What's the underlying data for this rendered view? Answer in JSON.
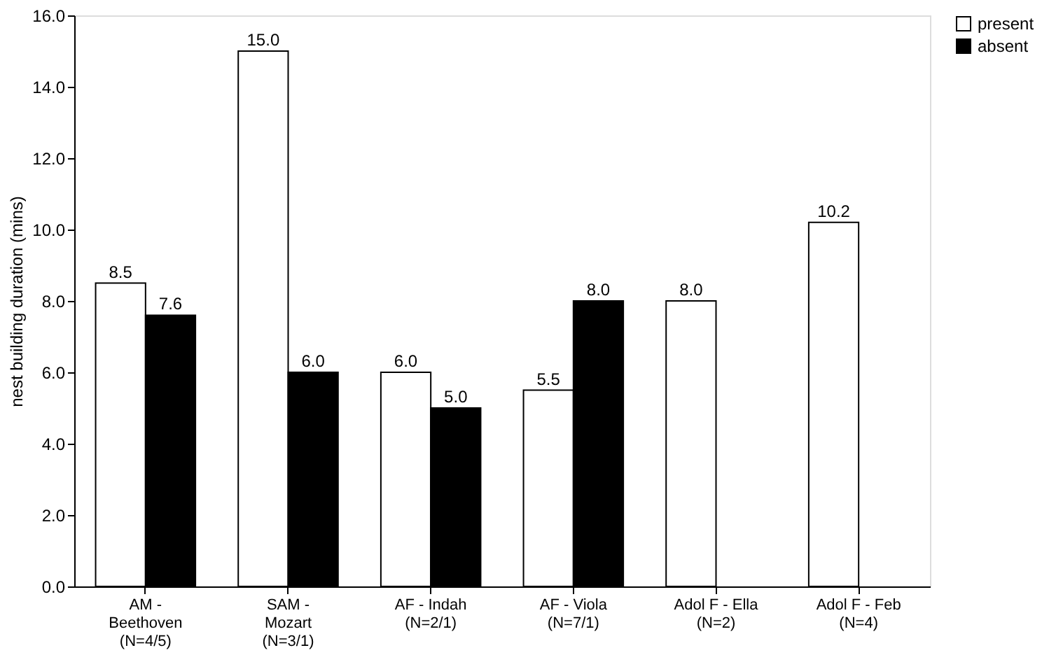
{
  "chart_data": {
    "type": "bar",
    "ylabel": "nest building duration (mins)",
    "categories": [
      "AM -\nBeethoven\n(N=4/5)",
      "SAM -\nMozart\n(N=3/1)",
      "AF - Indah\n(N=2/1)",
      "AF - Viola\n(N=7/1)",
      "Adol F - Ella\n(N=2)",
      "Adol F - Feb\n(N=4)"
    ],
    "series": [
      {
        "name": "present",
        "color": "#ffffff",
        "values": [
          8.5,
          15.0,
          6.0,
          5.5,
          8.0,
          10.2
        ],
        "value_labels": [
          "8.5",
          "15.0",
          "6.0",
          "5.5",
          "8.0",
          "10.2"
        ]
      },
      {
        "name": "absent",
        "color": "#000000",
        "values": [
          7.6,
          6.0,
          5.0,
          8.0,
          null,
          null
        ],
        "value_labels": [
          "7.6",
          "6.0",
          "5.0",
          "8.0",
          null,
          null
        ]
      }
    ],
    "ylim": [
      0,
      16
    ],
    "yticks": [
      {
        "value": 0,
        "label": "0.0"
      },
      {
        "value": 2,
        "label": "2.0"
      },
      {
        "value": 4,
        "label": "4.0"
      },
      {
        "value": 6,
        "label": "6.0"
      },
      {
        "value": 8,
        "label": "8.0"
      },
      {
        "value": 10,
        "label": "10.0"
      },
      {
        "value": 12,
        "label": "12.0"
      },
      {
        "value": 14,
        "label": "14.0"
      },
      {
        "value": 16,
        "label": "16.0"
      }
    ],
    "grid": false,
    "legend": "right"
  }
}
